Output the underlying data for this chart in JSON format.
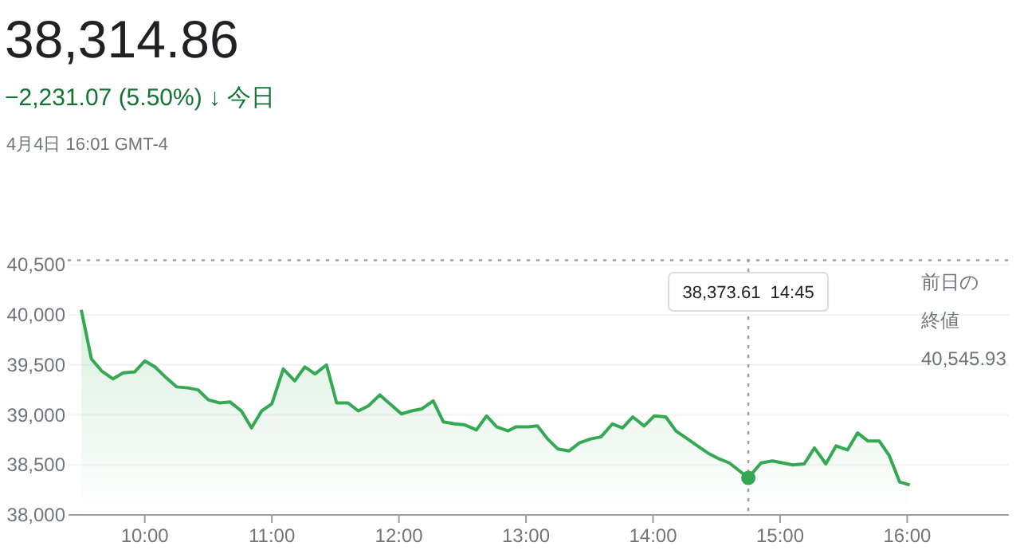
{
  "chart_data": {
    "type": "area",
    "title": "38,314.86",
    "subtitle": "−2,231.07 (5.50%) ↓ 今日",
    "annotations": [
      "4月4日 16:01 GMT-4",
      "38,373.61  14:45"
    ],
    "x": [
      9.5,
      9.58,
      9.66,
      9.75,
      9.83,
      9.92,
      10.0,
      10.08,
      10.17,
      10.25,
      10.34,
      10.42,
      10.5,
      10.59,
      10.67,
      10.76,
      10.84,
      10.92,
      11.0,
      11.09,
      11.18,
      11.26,
      11.34,
      11.43,
      11.51,
      11.6,
      11.68,
      11.76,
      11.85,
      11.93,
      12.02,
      12.1,
      12.18,
      12.27,
      12.35,
      12.44,
      12.52,
      12.61,
      12.69,
      12.77,
      12.86,
      12.92,
      13.02,
      13.09,
      13.17,
      13.25,
      13.34,
      13.42,
      13.51,
      13.59,
      13.68,
      13.76,
      13.84,
      13.93,
      14.01,
      14.1,
      14.18,
      14.26,
      14.35,
      14.43,
      14.52,
      14.6,
      14.68,
      14.75,
      14.85,
      14.94,
      15.02,
      15.1,
      15.19,
      15.27,
      15.36,
      15.44,
      15.53,
      15.61,
      15.69,
      15.78,
      15.86,
      15.94,
      16.02
    ],
    "series": [
      {
        "color": "#34a853",
        "values": [
          40050,
          39560,
          39440,
          39360,
          39420,
          39430,
          39540,
          39480,
          39370,
          39280,
          39270,
          39250,
          39150,
          39120,
          39130,
          39040,
          38870,
          39040,
          39110,
          39460,
          39340,
          39480,
          39410,
          39500,
          39120,
          39120,
          39040,
          39090,
          39200,
          39110,
          39010,
          39040,
          39060,
          39140,
          38930,
          38910,
          38900,
          38850,
          38990,
          38880,
          38840,
          38880,
          38880,
          38890,
          38760,
          38660,
          38640,
          38720,
          38760,
          38780,
          38910,
          38870,
          38980,
          38890,
          38990,
          38980,
          38840,
          38770,
          38690,
          38620,
          38560,
          38520,
          38440,
          38370,
          38520,
          38540,
          38520,
          38500,
          38510,
          38670,
          38510,
          38690,
          38650,
          38820,
          38740,
          38740,
          38590,
          38330,
          38300
        ]
      }
    ],
    "xlim": [
      9.4,
      16.8
    ],
    "xticks": [
      {
        "value": 10,
        "label": "10:00"
      },
      {
        "value": 11,
        "label": "11:00"
      },
      {
        "value": 12,
        "label": "12:00"
      },
      {
        "value": 13,
        "label": "13:00"
      },
      {
        "value": 14,
        "label": "14:00"
      },
      {
        "value": 15,
        "label": "15:00"
      },
      {
        "value": 16,
        "label": "16:00"
      }
    ],
    "ylim": [
      38000,
      40550
    ],
    "yticks": [
      {
        "value": 38000,
        "label": "38,000"
      },
      {
        "value": 38500,
        "label": "38,500"
      },
      {
        "value": 39000,
        "label": "39,000"
      },
      {
        "value": 39500,
        "label": "39,500"
      },
      {
        "value": 40000,
        "label": "40,000"
      },
      {
        "value": 40500,
        "label": "40,500"
      }
    ],
    "ref_lines": [
      {
        "axis": "y",
        "value": 40545.93,
        "label": "前日の終値 40,545.93",
        "line_style": "dotted",
        "color": "#9aa0a6"
      },
      {
        "axis": "x",
        "value": 14.75,
        "line_style": "dotted",
        "color": "#9aa0a6"
      }
    ],
    "grid": "y",
    "marker": "none",
    "line_style": "solid"
  }
}
